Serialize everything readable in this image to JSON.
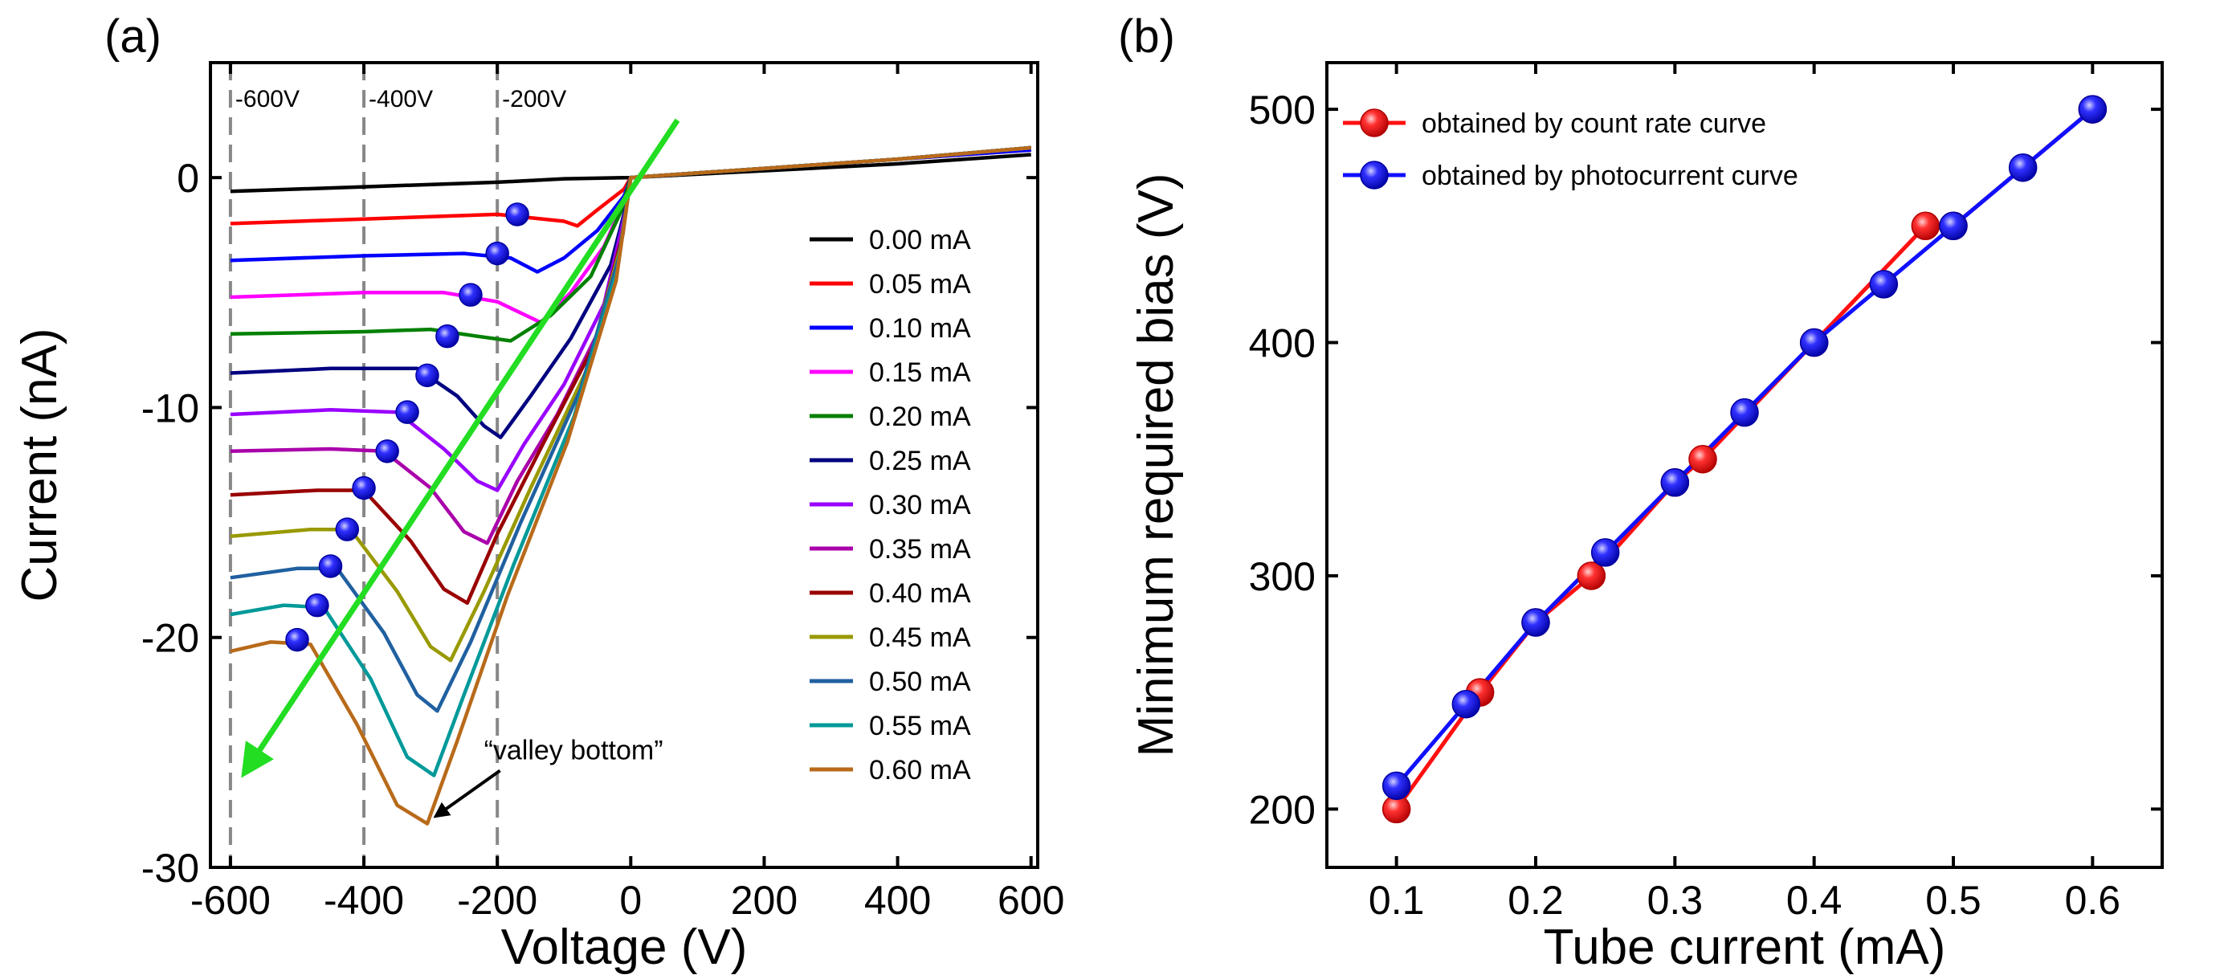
{
  "chart_data": [
    {
      "type": "line",
      "panel_label": "(a)",
      "xlabel": "Voltage (V)",
      "ylabel": "Current (nA)",
      "xlim": [
        -630,
        610
      ],
      "ylim": [
        -30,
        5
      ],
      "xticks": [
        -600,
        -400,
        -200,
        0,
        200,
        400,
        600
      ],
      "yticks": [
        0,
        -10,
        -20,
        -30
      ],
      "xtick_labels": [
        "-600",
        "-400",
        "-200",
        "0",
        "200",
        "400",
        "600"
      ],
      "ytick_labels": [
        "0",
        "-10",
        "-20",
        "-30"
      ],
      "bias_lines": [
        {
          "x": -600,
          "label": "-600V"
        },
        {
          "x": -400,
          "label": "-400V"
        },
        {
          "x": -200,
          "label": "-200V"
        }
      ],
      "annotation": {
        "text": "“valley bottom”",
        "target_x": -305,
        "target_y": -27.9,
        "text_x": -220,
        "text_y": -25.3
      },
      "arrow": {
        "color": "#22dd22",
        "from": [
          70,
          2.5
        ],
        "to": [
          -570,
          -25.5
        ]
      },
      "legend_position": "center-right",
      "series": [
        {
          "name": "0.00 mA",
          "color": "#000000",
          "base": -0.6,
          "valley": null,
          "marker": null,
          "points": [
            [
              -600,
              -0.6
            ],
            [
              -400,
              -0.4
            ],
            [
              -200,
              -0.2
            ],
            [
              -100,
              -0.05
            ],
            [
              0,
              0
            ],
            [
              200,
              0.3
            ],
            [
              400,
              0.6
            ],
            [
              600,
              1.0
            ]
          ]
        },
        {
          "name": "0.05 mA",
          "color": "#ff0000",
          "base": -2.0,
          "valley": [
            -80,
            -2.1
          ],
          "marker": [
            -170,
            -1.6
          ],
          "points": [
            [
              -600,
              -2.0
            ],
            [
              -400,
              -1.8
            ],
            [
              -200,
              -1.6
            ],
            [
              -100,
              -1.9
            ],
            [
              -80,
              -2.1
            ],
            [
              -50,
              -1.4
            ],
            [
              -10,
              -0.5
            ],
            [
              0,
              0
            ],
            [
              200,
              0.4
            ],
            [
              400,
              0.8
            ],
            [
              600,
              1.2
            ]
          ]
        },
        {
          "name": "0.10 mA",
          "color": "#0000ff",
          "base": -3.6,
          "valley": [
            -140,
            -4.1
          ],
          "marker": [
            -200,
            -3.3
          ],
          "points": [
            [
              -600,
              -3.6
            ],
            [
              -400,
              -3.4
            ],
            [
              -250,
              -3.3
            ],
            [
              -180,
              -3.5
            ],
            [
              -140,
              -4.1
            ],
            [
              -100,
              -3.5
            ],
            [
              -50,
              -2.3
            ],
            [
              -10,
              -0.8
            ],
            [
              0,
              0
            ],
            [
              200,
              0.4
            ],
            [
              400,
              0.8
            ],
            [
              600,
              1.2
            ]
          ]
        },
        {
          "name": "0.15 mA",
          "color": "#ff00ff",
          "base": -5.2,
          "valley": [
            -135,
            -6.3
          ],
          "marker": [
            -240,
            -5.1
          ],
          "points": [
            [
              -600,
              -5.2
            ],
            [
              -400,
              -5.0
            ],
            [
              -280,
              -5.0
            ],
            [
              -200,
              -5.4
            ],
            [
              -135,
              -6.3
            ],
            [
              -90,
              -5.0
            ],
            [
              -40,
              -3.0
            ],
            [
              -10,
              -1.0
            ],
            [
              0,
              0
            ],
            [
              200,
              0.4
            ],
            [
              400,
              0.8
            ],
            [
              600,
              1.3
            ]
          ]
        },
        {
          "name": "0.20 mA",
          "color": "#008000",
          "base": -6.8,
          "valley": [
            -180,
            -7.1
          ],
          "marker": [
            -275,
            -6.9
          ],
          "points": [
            [
              -600,
              -6.8
            ],
            [
              -400,
              -6.7
            ],
            [
              -300,
              -6.6
            ],
            [
              -230,
              -6.9
            ],
            [
              -180,
              -7.1
            ],
            [
              -120,
              -6.0
            ],
            [
              -60,
              -4.3
            ],
            [
              -15,
              -1.5
            ],
            [
              0,
              0
            ],
            [
              200,
              0.4
            ],
            [
              400,
              0.8
            ],
            [
              600,
              1.3
            ]
          ]
        },
        {
          "name": "0.25 mA",
          "color": "#000080",
          "base": -8.5,
          "valley": [
            -195,
            -11.3
          ],
          "marker": [
            -305,
            -8.6
          ],
          "points": [
            [
              -600,
              -8.5
            ],
            [
              -450,
              -8.3
            ],
            [
              -320,
              -8.3
            ],
            [
              -260,
              -9.5
            ],
            [
              -220,
              -10.8
            ],
            [
              -195,
              -11.3
            ],
            [
              -150,
              -9.5
            ],
            [
              -90,
              -7.0
            ],
            [
              -30,
              -3.8
            ],
            [
              -5,
              -1.0
            ],
            [
              0,
              0
            ],
            [
              200,
              0.4
            ],
            [
              400,
              0.8
            ],
            [
              600,
              1.3
            ]
          ]
        },
        {
          "name": "0.30 mA",
          "color": "#9900ff",
          "base": -10.3,
          "valley": [
            -200,
            -13.6
          ],
          "marker": [
            -335,
            -10.2
          ],
          "points": [
            [
              -600,
              -10.3
            ],
            [
              -450,
              -10.1
            ],
            [
              -350,
              -10.2
            ],
            [
              -280,
              -11.8
            ],
            [
              -230,
              -13.2
            ],
            [
              -200,
              -13.6
            ],
            [
              -160,
              -11.6
            ],
            [
              -100,
              -9.0
            ],
            [
              -40,
              -5.5
            ],
            [
              -8,
              -1.5
            ],
            [
              0,
              0
            ],
            [
              200,
              0.4
            ],
            [
              400,
              0.8
            ],
            [
              600,
              1.3
            ]
          ]
        },
        {
          "name": "0.35 mA",
          "color": "#aa00aa",
          "base": -11.9,
          "valley": [
            -215,
            -15.9
          ],
          "marker": [
            -365,
            -11.9
          ],
          "points": [
            [
              -600,
              -11.9
            ],
            [
              -450,
              -11.8
            ],
            [
              -370,
              -11.9
            ],
            [
              -300,
              -13.5
            ],
            [
              -250,
              -15.4
            ],
            [
              -215,
              -15.9
            ],
            [
              -170,
              -13.2
            ],
            [
              -110,
              -10.3
            ],
            [
              -45,
              -6.5
            ],
            [
              -10,
              -2.0
            ],
            [
              0,
              0
            ],
            [
              200,
              0.4
            ],
            [
              400,
              0.8
            ],
            [
              600,
              1.3
            ]
          ]
        },
        {
          "name": "0.40 mA",
          "color": "#990000",
          "base": -13.8,
          "valley": [
            -245,
            -18.5
          ],
          "marker": [
            -400,
            -13.5
          ],
          "points": [
            [
              -600,
              -13.8
            ],
            [
              -470,
              -13.6
            ],
            [
              -400,
              -13.6
            ],
            [
              -330,
              -15.8
            ],
            [
              -280,
              -17.9
            ],
            [
              -245,
              -18.5
            ],
            [
              -200,
              -15.5
            ],
            [
              -130,
              -11.5
            ],
            [
              -55,
              -7.3
            ],
            [
              -12,
              -2.5
            ],
            [
              0,
              0
            ],
            [
              200,
              0.4
            ],
            [
              400,
              0.8
            ],
            [
              600,
              1.3
            ]
          ]
        },
        {
          "name": "0.45 mA",
          "color": "#999900",
          "base": -15.6,
          "valley": [
            -270,
            -21.0
          ],
          "marker": [
            -425,
            -15.3
          ],
          "points": [
            [
              -600,
              -15.6
            ],
            [
              -480,
              -15.3
            ],
            [
              -420,
              -15.3
            ],
            [
              -350,
              -18.0
            ],
            [
              -300,
              -20.4
            ],
            [
              -270,
              -21.0
            ],
            [
              -220,
              -18.0
            ],
            [
              -150,
              -13.5
            ],
            [
              -65,
              -8.3
            ],
            [
              -15,
              -3.0
            ],
            [
              0,
              0
            ],
            [
              200,
              0.4
            ],
            [
              400,
              0.8
            ],
            [
              600,
              1.3
            ]
          ]
        },
        {
          "name": "0.50 mA",
          "color": "#2060a0",
          "base": -17.4,
          "valley": [
            -290,
            -23.2
          ],
          "marker": [
            -450,
            -16.9
          ],
          "points": [
            [
              -600,
              -17.4
            ],
            [
              -500,
              -17.0
            ],
            [
              -440,
              -17.0
            ],
            [
              -370,
              -19.8
            ],
            [
              -320,
              -22.5
            ],
            [
              -290,
              -23.2
            ],
            [
              -240,
              -20.2
            ],
            [
              -165,
              -15.0
            ],
            [
              -75,
              -9.2
            ],
            [
              -18,
              -3.5
            ],
            [
              0,
              0
            ],
            [
              200,
              0.4
            ],
            [
              400,
              0.8
            ],
            [
              600,
              1.3
            ]
          ]
        },
        {
          "name": "0.55 mA",
          "color": "#009999",
          "base": -19.0,
          "valley": [
            -295,
            -26.0
          ],
          "marker": [
            -470,
            -18.6
          ],
          "points": [
            [
              -600,
              -19.0
            ],
            [
              -520,
              -18.6
            ],
            [
              -460,
              -18.7
            ],
            [
              -390,
              -21.8
            ],
            [
              -335,
              -25.2
            ],
            [
              -295,
              -26.0
            ],
            [
              -250,
              -22.5
            ],
            [
              -175,
              -16.8
            ],
            [
              -85,
              -10.4
            ],
            [
              -20,
              -4.0
            ],
            [
              0,
              0
            ],
            [
              200,
              0.4
            ],
            [
              400,
              0.8
            ],
            [
              600,
              1.3
            ]
          ]
        },
        {
          "name": "0.60 mA",
          "color": "#b86a1a",
          "base": -20.6,
          "valley": [
            -305,
            -28.1
          ],
          "marker": [
            -500,
            -20.1
          ],
          "points": [
            [
              -600,
              -20.6
            ],
            [
              -540,
              -20.2
            ],
            [
              -480,
              -20.3
            ],
            [
              -410,
              -23.8
            ],
            [
              -350,
              -27.3
            ],
            [
              -305,
              -28.1
            ],
            [
              -260,
              -24.5
            ],
            [
              -185,
              -18.2
            ],
            [
              -95,
              -11.5
            ],
            [
              -22,
              -4.5
            ],
            [
              0,
              0
            ],
            [
              200,
              0.4
            ],
            [
              400,
              0.8
            ],
            [
              600,
              1.3
            ]
          ]
        }
      ]
    },
    {
      "type": "line",
      "panel_label": "(b)",
      "xlabel": "Tube current (mA)",
      "ylabel": "Minimum required bias (V)",
      "xlim": [
        0.05,
        0.65
      ],
      "ylim": [
        175,
        520
      ],
      "xticks": [
        0.1,
        0.2,
        0.3,
        0.4,
        0.5,
        0.6
      ],
      "yticks": [
        200,
        300,
        400,
        500
      ],
      "xtick_labels": [
        "0.1",
        "0.2",
        "0.3",
        "0.4",
        "0.5",
        "0.6"
      ],
      "ytick_labels": [
        "200",
        "300",
        "400",
        "500"
      ],
      "legend_position": "top-left",
      "series": [
        {
          "name": "obtained by count rate curve",
          "color": "#ff1010",
          "x": [
            0.1,
            0.16,
            0.2,
            0.24,
            0.3,
            0.32,
            0.4,
            0.48,
            0.5,
            0.6
          ],
          "y": [
            200,
            250,
            280,
            300,
            340,
            350,
            400,
            450,
            450,
            500
          ]
        },
        {
          "name": "obtained by photocurrent curve",
          "color": "#1010ff",
          "x": [
            0.1,
            0.15,
            0.2,
            0.25,
            0.3,
            0.35,
            0.4,
            0.45,
            0.5,
            0.55,
            0.6
          ],
          "y": [
            210,
            245,
            280,
            310,
            340,
            370,
            400,
            425,
            450,
            475,
            500
          ]
        }
      ]
    }
  ]
}
